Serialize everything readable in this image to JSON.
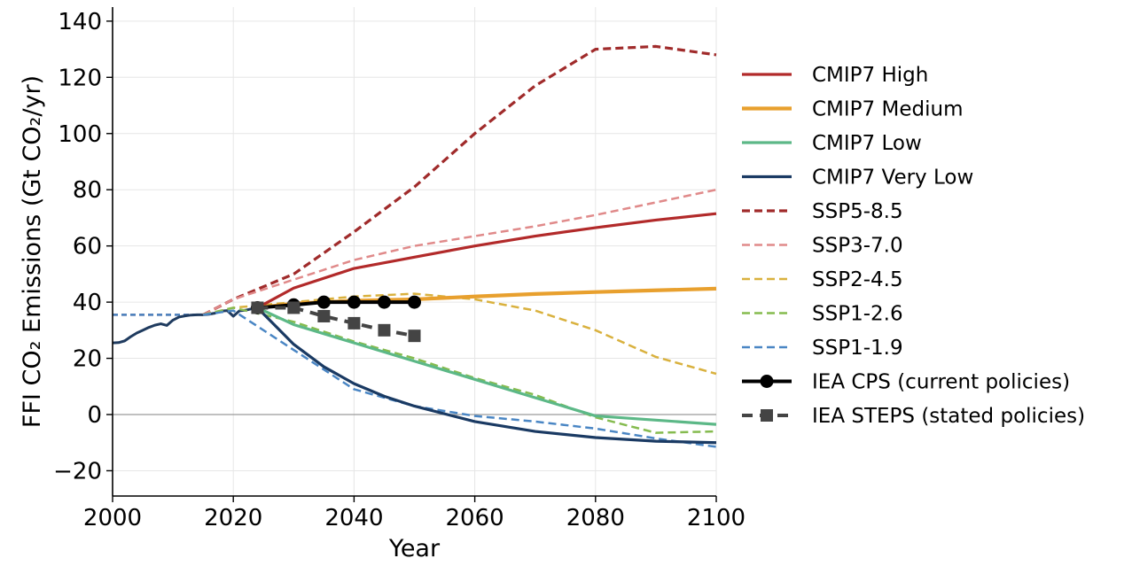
{
  "chart_data": {
    "type": "line",
    "xlabel": "Year",
    "ylabel": "FFI CO₂ Emissions (Gt CO₂/yr)",
    "xlim": [
      2000,
      2100
    ],
    "ylim": [
      -29,
      145
    ],
    "xticks": [
      2000,
      2020,
      2040,
      2060,
      2080,
      2100
    ],
    "yticks": [
      -20,
      0,
      20,
      40,
      60,
      80,
      100,
      120,
      140
    ],
    "tick_labels": {
      "x": [
        "2000",
        "2020",
        "2040",
        "2060",
        "2080",
        "2100"
      ],
      "y": [
        "−20",
        "0",
        "20",
        "40",
        "60",
        "80",
        "100",
        "120",
        "140"
      ]
    },
    "grid": true,
    "zero_line": true,
    "legend": "right",
    "historical": {
      "color": "#1f3b5f",
      "x": [
        2000,
        2001,
        2002,
        2003,
        2004,
        2005,
        2006,
        2007,
        2008,
        2009,
        2010,
        2011,
        2012,
        2013,
        2014,
        2015,
        2016,
        2017,
        2018,
        2019,
        2020,
        2021,
        2022,
        2023,
        2024
      ],
      "y": [
        25.5,
        25.6,
        26.2,
        27.7,
        29.0,
        30.0,
        31.0,
        31.8,
        32.3,
        31.7,
        33.6,
        34.7,
        35.1,
        35.4,
        35.5,
        35.5,
        35.7,
        36.1,
        36.8,
        37.0,
        35.0,
        36.9,
        37.1,
        37.6,
        38.0
      ]
    },
    "series": [
      {
        "name": "CMIP7 High",
        "color": "#b22a2a",
        "style": "solid",
        "width": 3.2,
        "x": [
          2024,
          2030,
          2040,
          2050,
          2060,
          2070,
          2080,
          2090,
          2100
        ],
        "y": [
          38,
          45,
          52,
          56,
          60,
          63.5,
          66.5,
          69.2,
          71.5
        ]
      },
      {
        "name": "CMIP7 Medium",
        "color": "#e8a02e",
        "style": "solid",
        "width": 4.2,
        "x": [
          2024,
          2030,
          2040,
          2050,
          2060,
          2070,
          2080,
          2090,
          2100
        ],
        "y": [
          38,
          39.5,
          40.5,
          41,
          42,
          42.9,
          43.6,
          44.2,
          44.8
        ]
      },
      {
        "name": "CMIP7 Low",
        "color": "#5cb887",
        "style": "solid",
        "width": 3.2,
        "x": [
          2024,
          2030,
          2040,
          2050,
          2060,
          2070,
          2080,
          2090,
          2100
        ],
        "y": [
          38,
          32,
          25.5,
          19,
          12.5,
          6,
          -0.5,
          -2,
          -3.5
        ]
      },
      {
        "name": "CMIP7 Very Low",
        "color": "#1a3a63",
        "style": "solid",
        "width": 3.2,
        "x": [
          2024,
          2030,
          2035,
          2040,
          2045,
          2050,
          2060,
          2070,
          2080,
          2090,
          2100
        ],
        "y": [
          38,
          25,
          17,
          11,
          6.5,
          3,
          -2.5,
          -6,
          -8.2,
          -9.5,
          -10
        ]
      },
      {
        "name": "SSP5-8.5",
        "color": "#a02b2b",
        "style": "dashed",
        "width": 3.2,
        "x": [
          2015,
          2020,
          2030,
          2040,
          2050,
          2060,
          2070,
          2080,
          2090,
          2100
        ],
        "y": [
          35.5,
          41,
          50,
          65,
          81,
          100,
          117,
          130,
          131,
          128
        ]
      },
      {
        "name": "SSP3-7.0",
        "color": "#e08a8a",
        "style": "dashed",
        "width": 2.5,
        "x": [
          2015,
          2020,
          2030,
          2040,
          2050,
          2060,
          2070,
          2080,
          2090,
          2100
        ],
        "y": [
          35.5,
          41,
          48,
          55,
          60,
          63.5,
          67,
          71,
          75.5,
          80
        ]
      },
      {
        "name": "SSP2-4.5",
        "color": "#d9b13e",
        "style": "dashed",
        "width": 2.5,
        "x": [
          2015,
          2020,
          2030,
          2040,
          2050,
          2060,
          2070,
          2080,
          2090,
          2100
        ],
        "y": [
          35.5,
          38,
          40,
          42,
          43,
          41,
          37,
          30,
          20.5,
          14.5
        ]
      },
      {
        "name": "SSP1-2.6",
        "color": "#85bb4f",
        "style": "dashed",
        "width": 2.5,
        "x": [
          2015,
          2020,
          2030,
          2040,
          2050,
          2060,
          2070,
          2080,
          2090,
          2100
        ],
        "y": [
          35.5,
          38,
          33,
          26,
          20,
          13,
          7,
          -1,
          -6.5,
          -6
        ]
      },
      {
        "name": "SSP1-1.9",
        "color": "#4a86c4",
        "style": "dashed",
        "width": 2.5,
        "x": [
          2015,
          2020,
          2030,
          2040,
          2050,
          2060,
          2070,
          2080,
          2090,
          2100
        ],
        "y": [
          35.5,
          37,
          23,
          9,
          3,
          -0.5,
          -2.5,
          -5,
          -8.5,
          -11.5
        ]
      },
      {
        "name": "IEA CPS (current policies)",
        "color": "#000000",
        "style": "solid",
        "width": 4,
        "marker": "circle",
        "x": [
          2024,
          2030,
          2035,
          2040,
          2045,
          2050
        ],
        "y": [
          38,
          39,
          40,
          40,
          40,
          40
        ]
      },
      {
        "name": "IEA STEPS (stated policies)",
        "color": "#444444",
        "style": "dashed",
        "width": 4,
        "marker": "square",
        "x": [
          2024,
          2030,
          2035,
          2040,
          2045,
          2050
        ],
        "y": [
          38,
          38,
          35,
          32.5,
          30,
          28
        ]
      }
    ],
    "pre_history_lines": [
      {
        "color": "#b22a2a",
        "x": [
          2000,
          2015
        ],
        "y": [
          35.5,
          35.5
        ]
      },
      {
        "color": "#4a86c4",
        "x": [
          2000,
          2015
        ],
        "y": [
          35.5,
          35.5
        ]
      }
    ]
  }
}
